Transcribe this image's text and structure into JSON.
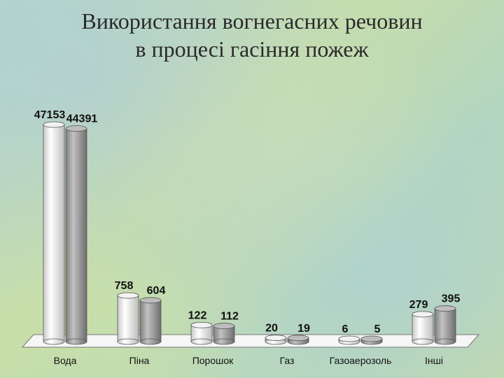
{
  "title_line1": "Використання вогнегасних речовин",
  "title_line2": "в процесі гасіння пожеж",
  "chart_data": {
    "type": "bar",
    "categories": [
      "Вода",
      "Піна",
      "Порошок",
      "Газ",
      "Газоаерозоль",
      "Інші"
    ],
    "series": [
      {
        "values": [
          47153,
          758,
          122,
          20,
          6,
          279
        ]
      },
      {
        "values": [
          44391,
          604,
          112,
          19,
          5,
          395
        ]
      }
    ],
    "ylim": [
      0,
      50000
    ],
    "colors": {
      "series1": "#e8e8e8",
      "series2": "#a5a5a5",
      "floor": "#f5f5f5"
    }
  }
}
